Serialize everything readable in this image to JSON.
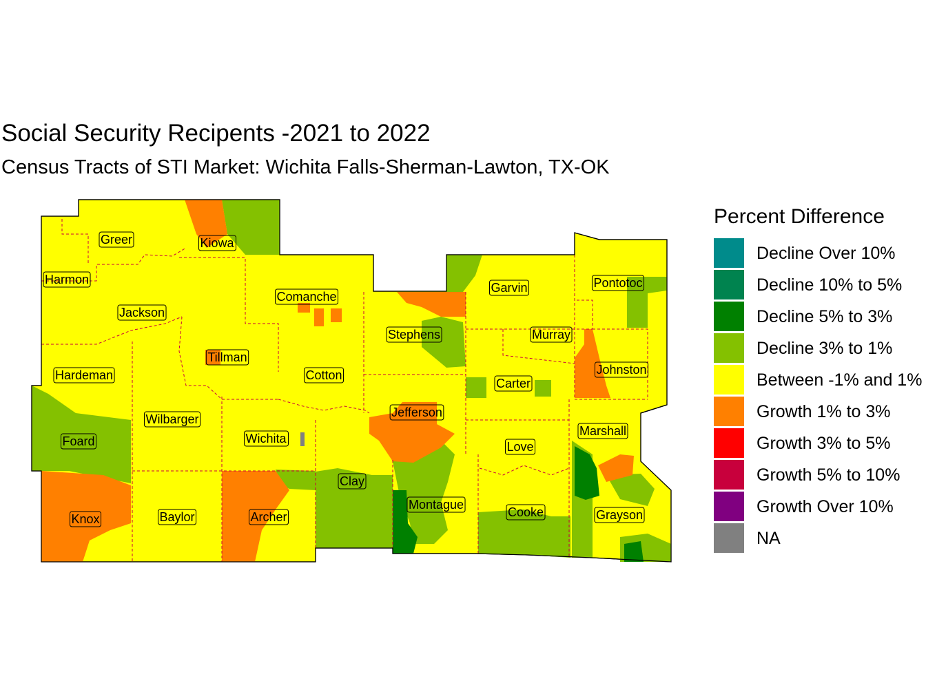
{
  "title": "Social Security Recipents -2021 to 2022",
  "subtitle": "Census Tracts of STI Market: Wichita Falls-Sherman-Lawton, TX-OK",
  "legend": {
    "title": "Percent Difference",
    "items": [
      {
        "label": "Decline Over 10%",
        "color": "#008b8b"
      },
      {
        "label": "Decline 10% to 5%",
        "color": "#00834f"
      },
      {
        "label": "Decline 5% to 3%",
        "color": "#008000"
      },
      {
        "label": "Decline 3% to 1%",
        "color": "#84c100"
      },
      {
        "label": "Between -1% and 1%",
        "color": "#ffff00"
      },
      {
        "label": "Growth 1% to 3%",
        "color": "#ff8000"
      },
      {
        "label": "Growth 3% to 5%",
        "color": "#ff0000"
      },
      {
        "label": "Growth 5% to 10%",
        "color": "#c8003c"
      },
      {
        "label": "Growth Over 10%",
        "color": "#800080"
      },
      {
        "label": "NA",
        "color": "#808080"
      }
    ]
  },
  "counties": [
    "Greer",
    "Kiowa",
    "Harmon",
    "Jackson",
    "Comanche",
    "Tillman",
    "Hardeman",
    "Cotton",
    "Foard",
    "Wilbarger",
    "Wichita",
    "Knox",
    "Baylor",
    "Archer",
    "Clay",
    "Stephens",
    "Jefferson",
    "Montague",
    "Garvin",
    "Murray",
    "Carter",
    "Love",
    "Cooke",
    "Pontotoc",
    "Johnston",
    "Marshall",
    "Grayson"
  ]
}
